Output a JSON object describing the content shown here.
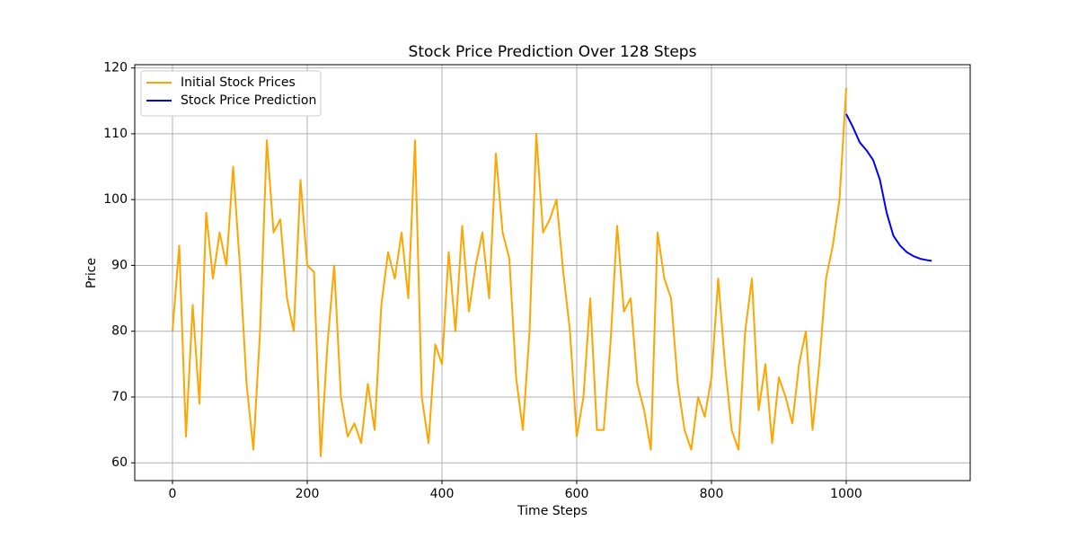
{
  "chart_data": {
    "type": "line",
    "title": "Stock Price Prediction Over 128 Steps",
    "xlabel": "Time Steps",
    "ylabel": "Price",
    "xlim": [
      -56,
      1184
    ],
    "ylim": [
      57.3,
      120.5
    ],
    "xticks": [
      0,
      200,
      400,
      600,
      800,
      1000
    ],
    "yticks": [
      60,
      70,
      80,
      90,
      100,
      110,
      120
    ],
    "grid": true,
    "legend": "upper left",
    "series": [
      {
        "name": "Initial Stock Prices",
        "color": "orange",
        "x": [
          0,
          10,
          20,
          30,
          40,
          50,
          60,
          70,
          80,
          90,
          100,
          110,
          120,
          130,
          140,
          150,
          160,
          170,
          180,
          190,
          200,
          210,
          220,
          230,
          240,
          250,
          260,
          270,
          280,
          290,
          300,
          310,
          320,
          330,
          340,
          350,
          360,
          370,
          380,
          390,
          400,
          410,
          420,
          430,
          440,
          450,
          460,
          470,
          480,
          490,
          500,
          510,
          520,
          530,
          540,
          550,
          560,
          570,
          580,
          590,
          600,
          610,
          620,
          630,
          640,
          650,
          660,
          670,
          680,
          690,
          700,
          710,
          720,
          730,
          740,
          750,
          760,
          770,
          780,
          790,
          800,
          810,
          820,
          830,
          840,
          850,
          860,
          870,
          880,
          890,
          900,
          910,
          920,
          930,
          940,
          950,
          960,
          970,
          980,
          990,
          1000
        ],
        "values": [
          80,
          93,
          64,
          84,
          69,
          98,
          88,
          95,
          90,
          105,
          90,
          72,
          62,
          80,
          109,
          95,
          97,
          85,
          80,
          103,
          90,
          89,
          61,
          78,
          90,
          70,
          64,
          66,
          63,
          72,
          65,
          84,
          92,
          88,
          95,
          85,
          109,
          70,
          63,
          78,
          75,
          92,
          80,
          96,
          83,
          90,
          95,
          85,
          107,
          95,
          91,
          73,
          65,
          80,
          110,
          95,
          97,
          100,
          89,
          80,
          64,
          70,
          85,
          65,
          65,
          78,
          96,
          83,
          85,
          72,
          68,
          62,
          95,
          88,
          85,
          72,
          65,
          62,
          70,
          67,
          73,
          88,
          75,
          65,
          62,
          80,
          88,
          68,
          75,
          63,
          73,
          70,
          66,
          75,
          80,
          65,
          75,
          88,
          93,
          100,
          117
        ]
      },
      {
        "name": "Stock Price Prediction",
        "color": "blue",
        "x": [
          1000,
          1010,
          1020,
          1030,
          1040,
          1050,
          1060,
          1070,
          1080,
          1090,
          1100,
          1110,
          1120,
          1127
        ],
        "values": [
          113,
          111,
          108.7,
          107.5,
          106,
          103,
          98,
          94.5,
          93,
          92,
          91.4,
          91,
          90.8,
          90.7
        ]
      }
    ]
  }
}
